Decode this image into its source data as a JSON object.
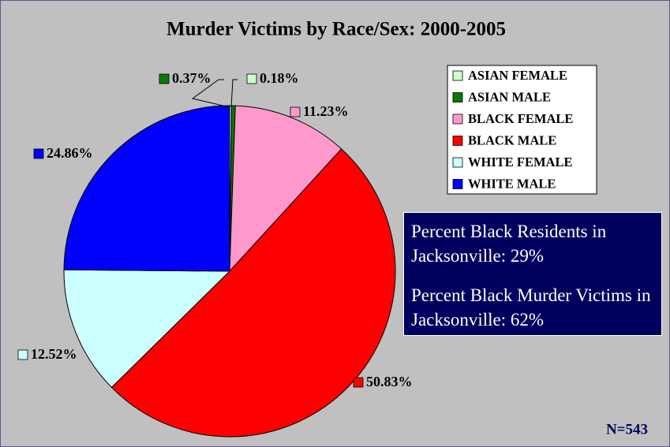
{
  "chart_data": {
    "type": "pie",
    "title": "Murder Victims by Race/Sex: 2000-2005",
    "categories": [
      "ASIAN FEMALE",
      "ASIAN MALE",
      "BLACK FEMALE",
      "BLACK MALE",
      "WHITE FEMALE",
      "WHITE MALE"
    ],
    "values": [
      0.18,
      0.37,
      11.23,
      50.83,
      12.52,
      24.86
    ],
    "value_labels": [
      "0.18%",
      "0.37%",
      "11.23%",
      "50.83%",
      "12.52%",
      "24.86%"
    ],
    "colors": [
      "#ccffcc",
      "#087a08",
      "#ff99cc",
      "#ff0000",
      "#ccffff",
      "#0000ff"
    ],
    "annotations": [
      "Percent Black Residents in Jacksonville: 29%",
      "Percent Black Murder Victims in Jacksonville: 62%"
    ],
    "note": "N=543"
  }
}
